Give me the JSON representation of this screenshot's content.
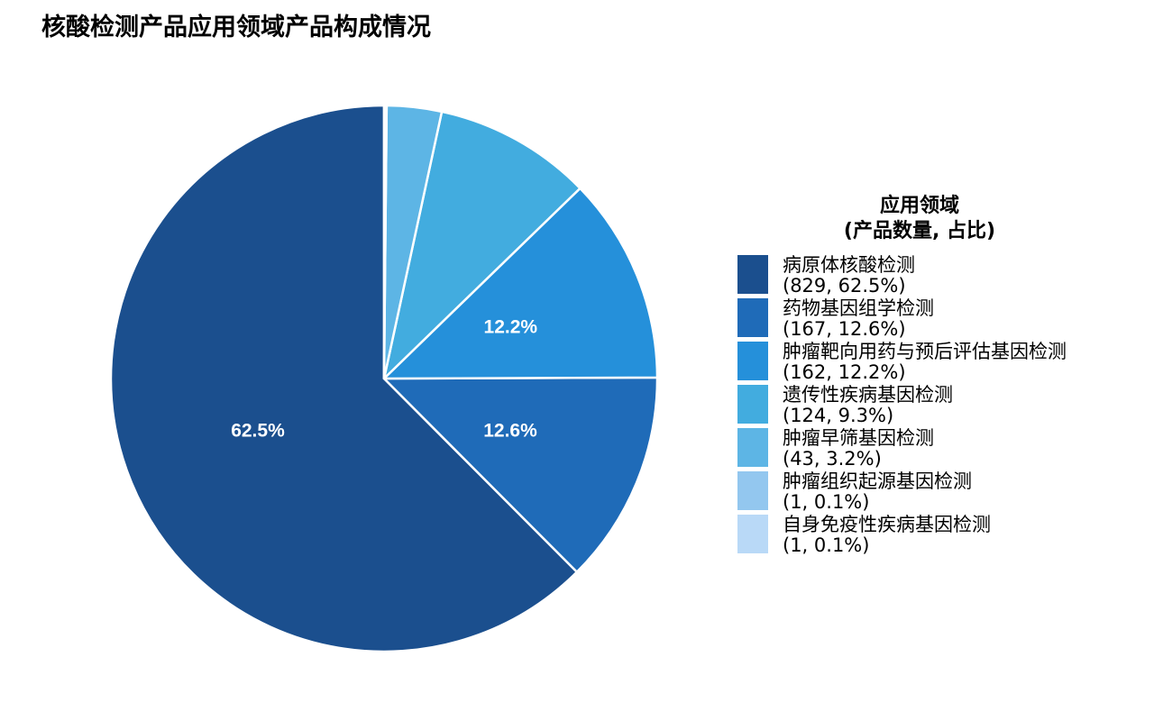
{
  "chart_data": {
    "type": "pie",
    "title": "核酸检测产品应用领域产品构成情况",
    "legend": {
      "title_line1": "应用领域",
      "title_line2": "(产品数量, 占比)",
      "position": "right"
    },
    "slices": [
      {
        "label": "病原体核酸检测",
        "value": 829,
        "percent": 62.5,
        "percent_label": "62.5%",
        "detail": "(829, 62.5%)",
        "color": "#1b4f8e"
      },
      {
        "label": "药物基因组学检测",
        "value": 167,
        "percent": 12.6,
        "percent_label": "12.6%",
        "detail": "(167, 12.6%)",
        "color": "#1f6bb8"
      },
      {
        "label": "肿瘤靶向用药与预后评估基因检测",
        "value": 162,
        "percent": 12.2,
        "percent_label": "12.2%",
        "detail": "(162, 12.2%)",
        "color": "#2590da"
      },
      {
        "label": "遗传性疾病基因检测",
        "value": 124,
        "percent": 9.3,
        "percent_label": "",
        "detail": "(124, 9.3%)",
        "color": "#42acdf"
      },
      {
        "label": "肿瘤早筛基因检测",
        "value": 43,
        "percent": 3.2,
        "percent_label": "",
        "detail": "(43, 3.2%)",
        "color": "#5db5e5"
      },
      {
        "label": "肿瘤组织起源基因检测",
        "value": 1,
        "percent": 0.1,
        "percent_label": "",
        "detail": "(1, 0.1%)",
        "color": "#93c7ef"
      },
      {
        "label": "自身免疫性疾病基因检测",
        "value": 1,
        "percent": 0.1,
        "percent_label": "",
        "detail": "(1, 0.1%)",
        "color": "#b9d9f7"
      }
    ]
  }
}
